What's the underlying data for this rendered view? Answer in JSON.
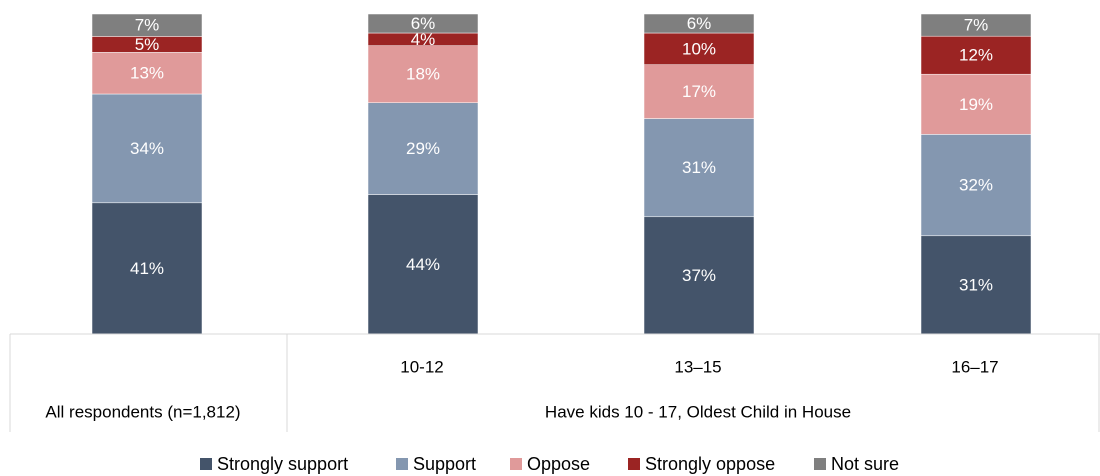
{
  "chart_data": {
    "type": "bar",
    "stacked": true,
    "orientation": "vertical",
    "categories": [
      "All respondents (n=1,812)",
      "10-12",
      "13–15",
      "16–17"
    ],
    "group_label": "Have kids 10 - 17, Oldest Child in House",
    "series": [
      {
        "name": "Strongly support",
        "color": "#44546a",
        "values": [
          41,
          44,
          37,
          31
        ]
      },
      {
        "name": "Support",
        "color": "#8497b0",
        "values": [
          34,
          29,
          31,
          32
        ]
      },
      {
        "name": "Oppose",
        "color": "#e09a9a",
        "values": [
          13,
          18,
          17,
          19
        ]
      },
      {
        "name": "Strongly oppose",
        "color": "#9b2423",
        "values": [
          5,
          4,
          10,
          12
        ]
      },
      {
        "name": "Not sure",
        "color": "#7f7f7f",
        "values": [
          7,
          6,
          6,
          7
        ]
      }
    ],
    "value_suffix": "%",
    "ylim": [
      0,
      100
    ],
    "grid": false,
    "legend_position": "bottom"
  }
}
